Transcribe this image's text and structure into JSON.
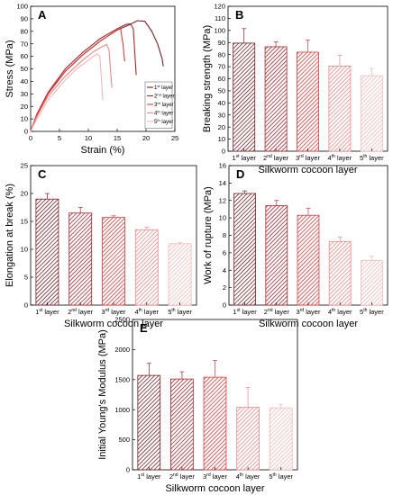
{
  "colors": {
    "layer1": "#7a1f24",
    "layer2": "#a8272d",
    "layer3": "#e03c3c",
    "layer4": "#f08a8a",
    "layer5": "#f6b8b8"
  },
  "chart_data": [
    {
      "id": "A",
      "type": "line",
      "panel_label": "A",
      "xlabel": "Strain (%)",
      "ylabel": "Stress (MPa)",
      "xlim": [
        0,
        25
      ],
      "ylim": [
        0,
        100
      ],
      "xticks": [
        0,
        5,
        10,
        15,
        20,
        25
      ],
      "yticks": [
        0,
        10,
        20,
        30,
        40,
        50,
        60,
        70,
        80,
        90,
        100
      ],
      "legend_position": "bottom-right",
      "series": [
        {
          "name": "1st layer",
          "sup": "st",
          "base": "1",
          "suffix": " layer",
          "color_key": "layer1",
          "x": [
            0,
            1,
            3,
            6,
            9,
            12,
            15,
            17,
            18.5,
            19.8,
            21,
            22,
            22.8,
            23
          ],
          "y": [
            0,
            12,
            30,
            48,
            61,
            72,
            81,
            85,
            88.5,
            88,
            80,
            70,
            58,
            52
          ]
        },
        {
          "name": "2nd layer",
          "sup": "nd",
          "base": "2",
          "suffix": " layer",
          "color_key": "layer2",
          "x": [
            0,
            1,
            3,
            6,
            9,
            12,
            15,
            16.5,
            17.3,
            17.8,
            18.1,
            18.3
          ],
          "y": [
            0,
            13,
            31,
            50,
            63,
            74,
            82,
            85.5,
            86,
            82,
            60,
            45
          ]
        },
        {
          "name": "3rd layer",
          "sup": "rd",
          "base": "3",
          "suffix": " layer",
          "color_key": "layer3",
          "x": [
            0,
            1,
            3,
            6,
            9,
            12,
            14,
            15,
            15.6,
            16,
            16.3
          ],
          "y": [
            0,
            12,
            30,
            48,
            61,
            72,
            78,
            81,
            82,
            70,
            56
          ]
        },
        {
          "name": "4th layer",
          "sup": "th",
          "base": "4",
          "suffix": " layer",
          "color_key": "layer4",
          "x": [
            0,
            1,
            3,
            6,
            9,
            11,
            12.5,
            13.2,
            13.6,
            13.9,
            14.1
          ],
          "y": [
            0,
            11,
            28,
            44,
            57,
            64,
            68,
            69.5,
            65,
            45,
            35
          ]
        },
        {
          "name": "5th layer",
          "sup": "th",
          "base": "5",
          "suffix": " layer",
          "color_key": "layer5",
          "x": [
            0,
            1,
            3,
            6,
            8,
            10,
            11.5,
            12,
            12.3,
            12.5
          ],
          "y": [
            0,
            9,
            25,
            41,
            50,
            57,
            62,
            60,
            40,
            25
          ]
        }
      ]
    },
    {
      "id": "B",
      "type": "bar",
      "panel_label": "B",
      "xlabel": "Silkworm cocoon layer",
      "ylabel": "Breaking strength (MPa)",
      "ylim": [
        0,
        120
      ],
      "yticks": [
        0,
        10,
        20,
        30,
        40,
        50,
        60,
        70,
        80,
        90,
        100,
        110,
        120
      ],
      "categories": [
        "1st layer",
        "2nd layer",
        "3rd layer",
        "4th layer",
        "5th layer"
      ],
      "values": [
        89.5,
        86.5,
        82,
        70.5,
        62.5
      ],
      "errors": [
        12,
        4,
        10,
        9,
        6
      ]
    },
    {
      "id": "C",
      "type": "bar",
      "panel_label": "C",
      "xlabel": "Silkworm cocoon layer",
      "ylabel": "Elongation at break (%)",
      "ylim": [
        0,
        25
      ],
      "yticks": [
        0,
        5,
        10,
        15,
        20,
        25
      ],
      "categories": [
        "1st layer",
        "2nd layer",
        "3rd layer",
        "4th layer",
        "5th layer"
      ],
      "values": [
        19,
        16.5,
        15.7,
        13.5,
        11
      ],
      "errors": [
        1,
        1,
        0.3,
        0.5,
        0.2
      ]
    },
    {
      "id": "D",
      "type": "bar",
      "panel_label": "D",
      "xlabel": "Silkworm cocoon layer",
      "ylabel": "Work of rupture (MPa)",
      "ylim": [
        0,
        16
      ],
      "yticks": [
        0,
        2,
        4,
        6,
        8,
        10,
        12,
        14,
        16
      ],
      "categories": [
        "1st layer",
        "2nd layer",
        "3rd layer",
        "4th layer",
        "5th layer"
      ],
      "values": [
        12.8,
        11.4,
        10.3,
        7.3,
        5.1
      ],
      "errors": [
        0.3,
        0.6,
        0.8,
        0.5,
        0.5
      ]
    },
    {
      "id": "E",
      "type": "bar",
      "panel_label": "E",
      "xlabel": "Silkworm cocoon layer",
      "ylabel": "Initial Young's Modulus (MPa)",
      "ylim": [
        0,
        2500
      ],
      "yticks": [
        0,
        500,
        1000,
        1500,
        2000,
        2500
      ],
      "categories": [
        "1st layer",
        "2nd layer",
        "3rd layer",
        "4th layer",
        "5th layer"
      ],
      "values": [
        1570,
        1510,
        1540,
        1040,
        1030
      ],
      "errors": [
        200,
        120,
        280,
        330,
        60
      ]
    }
  ]
}
